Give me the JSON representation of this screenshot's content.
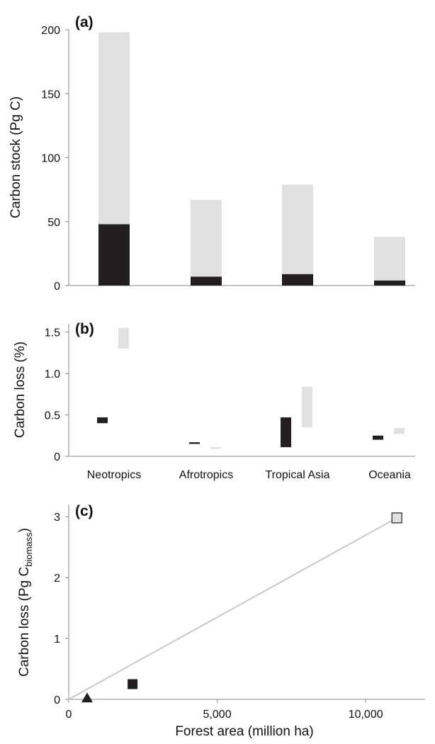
{
  "colors": {
    "dark": "#231f20",
    "light": "#e0e0e0",
    "trend": "#c8c8c8",
    "axis": "#888888"
  },
  "chart_data": [
    {
      "panel_label": "(a)",
      "type": "bar",
      "stacked": true,
      "categories": [
        "Neotropics",
        "Afrotropics",
        "Tropical Asia",
        "Oceania"
      ],
      "series": [
        {
          "values": [
            48,
            7,
            9,
            4
          ]
        },
        {
          "values": [
            150,
            60,
            70,
            34
          ]
        }
      ],
      "ylabel": "Carbon stock (Pg C)",
      "ylim": [
        0,
        200
      ],
      "yticks": [
        0,
        50,
        100,
        150,
        200
      ],
      "grid": false
    },
    {
      "panel_label": "(b)",
      "type": "bar",
      "floating_ranges": true,
      "categories": [
        "Neotropics",
        "Afrotropics",
        "Tropical Asia",
        "Oceania"
      ],
      "series": [
        {
          "ranges": [
            [
              0.4,
              0.47
            ],
            [
              0.15,
              0.17
            ],
            [
              0.11,
              0.47
            ],
            [
              0.2,
              0.25
            ]
          ]
        },
        {
          "ranges": [
            [
              1.3,
              1.55
            ],
            [
              0.09,
              0.11
            ],
            [
              0.35,
              0.84
            ],
            [
              0.27,
              0.34
            ]
          ]
        }
      ],
      "ylabel": "Carbon loss (%)",
      "ylim": [
        0,
        1.6
      ],
      "yticks": [
        "0",
        "0.5",
        "1.0",
        "1.5"
      ],
      "grid": false
    },
    {
      "panel_label": "(c)",
      "type": "scatter",
      "points": [
        {
          "x": 620,
          "y": 0.02,
          "marker": "triangle"
        },
        {
          "x": 2150,
          "y": 0.25,
          "marker": "square"
        },
        {
          "x": 11050,
          "y": 2.98,
          "marker": "square"
        }
      ],
      "trendline": {
        "x": [
          0,
          11050
        ],
        "y": [
          0,
          2.98
        ]
      },
      "xlabel": "Forest area (million ha)",
      "ylabel": "Carbon loss (Pg C",
      "ylabel_sub": "biomass",
      "ylabel_end": ")",
      "xlim": [
        0,
        12000
      ],
      "ylim": [
        0,
        3.2
      ],
      "xticks": [
        "0",
        "5,000",
        "10,000"
      ],
      "yticks": [
        "0",
        "1",
        "2",
        "3"
      ],
      "grid": false
    }
  ]
}
